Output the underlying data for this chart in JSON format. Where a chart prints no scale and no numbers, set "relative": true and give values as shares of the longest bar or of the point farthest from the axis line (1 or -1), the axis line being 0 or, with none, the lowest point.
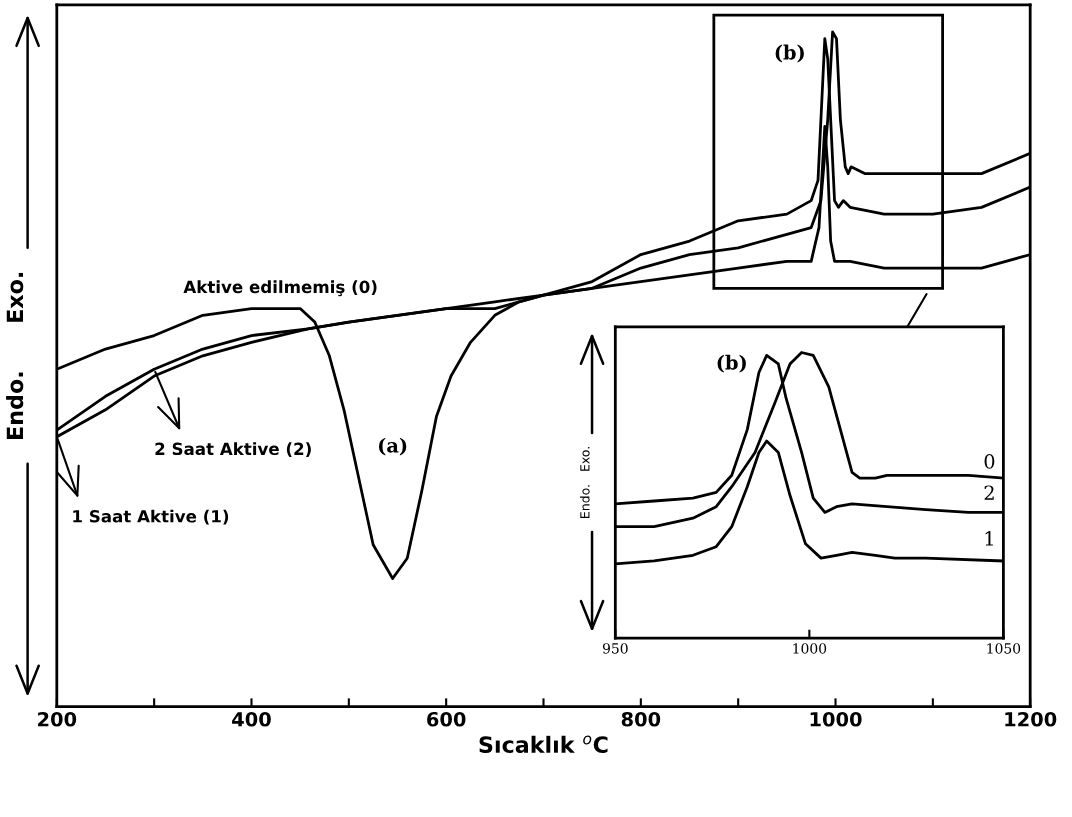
{
  "chart_data": [
    {
      "type": "line",
      "xlabel": "Sıcaklık $^{o}$C",
      "ylabel": "Endo.      Exo.",
      "relative": true,
      "xlim": [
        200,
        1200
      ],
      "xticks": [
        200,
        {
          "value": 300,
          "label": null
        },
        400,
        {
          "value": 500,
          "label": null
        },
        600,
        {
          "value": 700,
          "label": null
        },
        800,
        {
          "value": 900,
          "label": null
        },
        1000,
        {
          "value": 1100,
          "label": null
        },
        1200
      ],
      "tick_labels": "x",
      "marker": "none",
      "line_style": "solid",
      "legend": "left",
      "annotations": [
        "(a)",
        "(b)"
      ],
      "series": [
        {
          "name": "Aktive edilmemiş (0)",
          "color": "#000000",
          "x": [
            200,
            250,
            300,
            350,
            400,
            430,
            450,
            465,
            480,
            495,
            510,
            525,
            545,
            560,
            575,
            590,
            605,
            625,
            650,
            675,
            700,
            750,
            800,
            850,
            900,
            950,
            975,
            985,
            992,
            997,
            1001,
            1005,
            1010,
            1013,
            1016,
            1030,
            1060,
            1100,
            1150,
            1200
          ],
          "values": [
            0.5,
            0.53,
            0.55,
            0.58,
            0.59,
            0.59,
            0.59,
            0.57,
            0.52,
            0.44,
            0.34,
            0.24,
            0.19,
            0.22,
            0.32,
            0.43,
            0.49,
            0.54,
            0.58,
            0.6,
            0.61,
            0.62,
            0.65,
            0.67,
            0.68,
            0.7,
            0.71,
            0.75,
            0.87,
            1.0,
            0.99,
            0.87,
            0.8,
            0.79,
            0.8,
            0.79,
            0.79,
            0.79,
            0.79,
            0.82
          ]
        },
        {
          "name": "2 Saat Aktive (2)",
          "color": "#000000",
          "x": [
            200,
            250,
            300,
            350,
            400,
            458,
            500,
            550,
            600,
            650,
            700,
            750,
            800,
            850,
            900,
            950,
            975,
            982,
            986,
            989,
            992,
            995,
            999,
            1003,
            1008,
            1015,
            1050,
            1100,
            1150,
            1200
          ],
          "values": [
            0.41,
            0.46,
            0.5,
            0.53,
            0.55,
            0.56,
            0.57,
            0.58,
            0.59,
            0.59,
            0.61,
            0.63,
            0.67,
            0.69,
            0.72,
            0.73,
            0.75,
            0.78,
            0.9,
            0.99,
            0.96,
            0.87,
            0.75,
            0.74,
            0.75,
            0.74,
            0.73,
            0.73,
            0.74,
            0.77
          ]
        },
        {
          "name": "1 Saat Aktive (1)",
          "color": "#000000",
          "x": [
            200,
            250,
            300,
            350,
            400,
            458,
            500,
            550,
            600,
            650,
            700,
            750,
            800,
            850,
            900,
            950,
            975,
            983,
            987,
            989,
            992,
            995,
            999,
            1003,
            1008,
            1015,
            1050,
            1100,
            1150,
            1200
          ],
          "values": [
            0.4,
            0.44,
            0.49,
            0.52,
            0.54,
            0.56,
            0.57,
            0.58,
            0.59,
            0.6,
            0.61,
            0.62,
            0.63,
            0.64,
            0.65,
            0.66,
            0.66,
            0.71,
            0.81,
            0.86,
            0.8,
            0.69,
            0.66,
            0.66,
            0.66,
            0.66,
            0.65,
            0.65,
            0.65,
            0.67
          ]
        }
      ]
    },
    {
      "type": "line",
      "ylabel": "Endo.   Exo.",
      "relative": true,
      "xlim": [
        950,
        1050
      ],
      "xticks": [
        950,
        1000,
        1050
      ],
      "tick_labels": "x",
      "marker": "none",
      "line_style": "solid",
      "annotations": [
        "(b)"
      ],
      "series": [
        {
          "name": "0",
          "color": "#000000",
          "x": [
            950,
            960,
            970,
            976,
            980,
            986,
            991,
            995,
            998,
            1001,
            1005,
            1008,
            1011,
            1013,
            1017,
            1020,
            1028,
            1030,
            1041,
            1050
          ],
          "values": [
            0.39,
            0.39,
            0.42,
            0.46,
            0.53,
            0.65,
            0.82,
            0.96,
            1.0,
            0.99,
            0.88,
            0.73,
            0.58,
            0.56,
            0.56,
            0.57,
            0.57,
            0.57,
            0.57,
            0.56
          ]
        },
        {
          "name": "2",
          "color": "#000000",
          "x": [
            950,
            960,
            970,
            976,
            980,
            984,
            987,
            989,
            992,
            994,
            998,
            1001,
            1004,
            1007,
            1011,
            1020,
            1030,
            1041,
            1050
          ],
          "values": [
            0.47,
            0.48,
            0.49,
            0.51,
            0.57,
            0.73,
            0.93,
            0.99,
            0.96,
            0.84,
            0.65,
            0.49,
            0.44,
            0.46,
            0.47,
            0.46,
            0.45,
            0.44,
            0.44
          ]
        },
        {
          "name": "1",
          "color": "#000000",
          "x": [
            950,
            960,
            970,
            976,
            980,
            984,
            987,
            989,
            992,
            995,
            999,
            1003,
            1007,
            1011,
            1017,
            1022,
            1030,
            1050
          ],
          "values": [
            0.26,
            0.27,
            0.29,
            0.32,
            0.39,
            0.53,
            0.65,
            0.69,
            0.65,
            0.5,
            0.33,
            0.28,
            0.29,
            0.3,
            0.29,
            0.28,
            0.28,
            0.27
          ]
        }
      ]
    }
  ]
}
